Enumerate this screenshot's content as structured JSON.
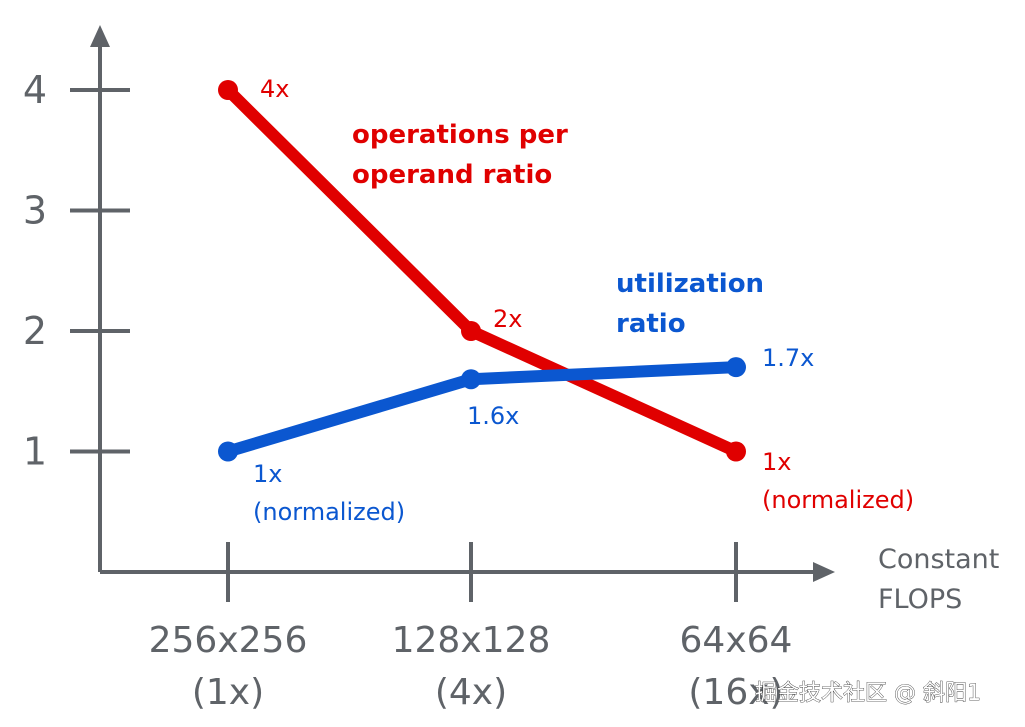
{
  "chart_data": {
    "type": "line",
    "categories": [
      "256x256\n(1x)",
      "128x128\n(4x)",
      "64x64\n(16x)"
    ],
    "xlabel": "Constant\nFLOPS",
    "ylabel": "",
    "ylim": [
      0,
      4.5
    ],
    "yticks": [
      1,
      2,
      3,
      4
    ],
    "grid": false,
    "series": [
      {
        "name": "operations per\noperand ratio",
        "color": "#e00000",
        "values": [
          4,
          2,
          1
        ],
        "labels": [
          "4x",
          "2x",
          "1x\n(normalized)"
        ]
      },
      {
        "name": "utilization\nratio",
        "color": "#0b57d0",
        "values": [
          1,
          1.6,
          1.7
        ],
        "labels": [
          "1x\n(normalized)",
          "1.6x",
          "1.7x"
        ]
      }
    ]
  },
  "watermark": "掘金技术社区 @ 斜阳1"
}
